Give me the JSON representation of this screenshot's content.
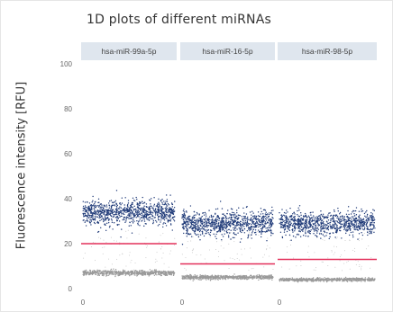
{
  "chart_data": {
    "type": "scatter",
    "title": "1D plots of different miRNAs",
    "ylabel": "Fluorescence intensity [RFU]",
    "ylim": [
      0,
      100
    ],
    "yticks": [
      0,
      20,
      40,
      60,
      80,
      100
    ],
    "xticks": [
      "0",
      "0",
      "0"
    ],
    "grid": false,
    "panels": [
      {
        "name": "hsa-miR-99a-5p",
        "threshold": 20,
        "positive_cluster": {
          "center": 34,
          "spread": 5
        },
        "negative_cluster": {
          "center": 7,
          "spread": 1.2
        }
      },
      {
        "name": "hsa-miR-16-5p",
        "threshold": 11,
        "positive_cluster": {
          "center": 29,
          "spread": 5
        },
        "negative_cluster": {
          "center": 5,
          "spread": 1.0
        }
      },
      {
        "name": "hsa-miR-98-5p",
        "threshold": 13,
        "positive_cluster": {
          "center": 29,
          "spread": 4.5
        },
        "negative_cluster": {
          "center": 4,
          "spread": 0.8
        }
      }
    ],
    "colors": {
      "positive": "#1f3a78",
      "negative": "#9a9a9a",
      "threshold": "#e3305a",
      "panel_header": "#dfe6ee"
    }
  }
}
